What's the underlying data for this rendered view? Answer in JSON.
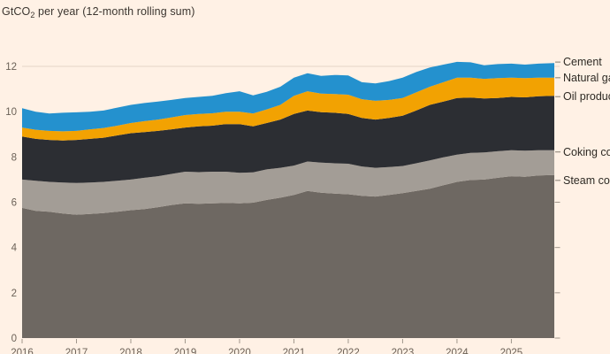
{
  "title": {
    "unit_main": "GtCO",
    "unit_sub": "2",
    "suffix": " per year (12-month rolling sum)"
  },
  "colors": {
    "background": "#FFF1E5",
    "gridline": "#e4d5c7",
    "tick": "#a1978c",
    "axis_label_text": "#6b6157",
    "title_text": "#3c3630",
    "series_label_text": "#2e2a24"
  },
  "chart_data": {
    "type": "area",
    "stacked": true,
    "title": "GtCO2 per year (12-month rolling sum)",
    "ylabel": "GtCO2 per year",
    "xlabel": "",
    "x_range": [
      2016,
      2025.79
    ],
    "ylim": [
      0,
      12.4
    ],
    "grid": "single horizontal gridline at y=12",
    "legend_position": "right-edge direct labels",
    "y_ticks": [
      0,
      2,
      4,
      6,
      8,
      10,
      12
    ],
    "y_ticks_right_marks": [
      0,
      2,
      4,
      6
    ],
    "x_ticks": [
      2016,
      2017,
      2018,
      2019,
      2020,
      2021,
      2022,
      2023,
      2024,
      2025
    ],
    "x": [
      2016,
      2016.25,
      2016.5,
      2016.75,
      2017,
      2017.25,
      2017.5,
      2017.75,
      2018,
      2018.25,
      2018.5,
      2018.75,
      2019,
      2019.25,
      2019.5,
      2019.75,
      2020,
      2020.25,
      2020.5,
      2020.75,
      2021,
      2021.25,
      2021.5,
      2021.75,
      2022,
      2022.25,
      2022.5,
      2022.75,
      2023,
      2023.25,
      2023.5,
      2023.75,
      2024,
      2024.25,
      2024.5,
      2024.75,
      2025,
      2025.25,
      2025.5,
      2025.79
    ],
    "series": [
      {
        "name": "Steam coal",
        "color": "#6e6862",
        "values": [
          5.75,
          5.62,
          5.58,
          5.5,
          5.45,
          5.48,
          5.52,
          5.58,
          5.65,
          5.7,
          5.78,
          5.88,
          5.95,
          5.93,
          5.95,
          5.97,
          5.95,
          5.98,
          6.1,
          6.2,
          6.32,
          6.5,
          6.42,
          6.38,
          6.35,
          6.28,
          6.25,
          6.32,
          6.4,
          6.5,
          6.6,
          6.75,
          6.9,
          6.98,
          7.0,
          7.08,
          7.15,
          7.12,
          7.18,
          7.2
        ]
      },
      {
        "name": "Coking coal",
        "color": "#a39d96",
        "values": [
          1.25,
          1.33,
          1.32,
          1.37,
          1.4,
          1.39,
          1.38,
          1.37,
          1.35,
          1.38,
          1.37,
          1.37,
          1.4,
          1.4,
          1.4,
          1.38,
          1.35,
          1.34,
          1.35,
          1.32,
          1.3,
          1.3,
          1.33,
          1.34,
          1.35,
          1.3,
          1.27,
          1.23,
          1.2,
          1.22,
          1.25,
          1.23,
          1.2,
          1.2,
          1.2,
          1.17,
          1.15,
          1.16,
          1.12,
          1.1
        ]
      },
      {
        "name": "Oil products",
        "color": "#2c2e33",
        "values": [
          1.9,
          1.85,
          1.85,
          1.86,
          1.9,
          1.93,
          1.95,
          2.0,
          2.05,
          2.02,
          2.0,
          1.97,
          1.95,
          2.02,
          2.03,
          2.1,
          2.15,
          2.03,
          2.05,
          2.13,
          2.28,
          2.25,
          2.23,
          2.23,
          2.2,
          2.14,
          2.13,
          2.17,
          2.22,
          2.33,
          2.45,
          2.47,
          2.5,
          2.44,
          2.38,
          2.35,
          2.35,
          2.35,
          2.38,
          2.4
        ]
      },
      {
        "name": "Natural gas",
        "color": "#f2a202",
        "values": [
          0.4,
          0.4,
          0.4,
          0.4,
          0.4,
          0.42,
          0.43,
          0.43,
          0.45,
          0.48,
          0.5,
          0.53,
          0.55,
          0.55,
          0.55,
          0.55,
          0.55,
          0.57,
          0.6,
          0.65,
          0.8,
          0.85,
          0.82,
          0.83,
          0.85,
          0.83,
          0.83,
          0.8,
          0.78,
          0.8,
          0.8,
          0.85,
          0.9,
          0.88,
          0.87,
          0.88,
          0.85,
          0.85,
          0.82,
          0.8
        ]
      },
      {
        "name": "Cement",
        "color": "#2491ce",
        "values": [
          0.85,
          0.8,
          0.77,
          0.82,
          0.82,
          0.78,
          0.77,
          0.8,
          0.8,
          0.8,
          0.8,
          0.77,
          0.75,
          0.75,
          0.77,
          0.82,
          0.9,
          0.8,
          0.78,
          0.8,
          0.8,
          0.8,
          0.78,
          0.84,
          0.85,
          0.75,
          0.77,
          0.83,
          0.9,
          0.9,
          0.85,
          0.78,
          0.7,
          0.68,
          0.6,
          0.62,
          0.62,
          0.6,
          0.62,
          0.65
        ]
      }
    ]
  }
}
